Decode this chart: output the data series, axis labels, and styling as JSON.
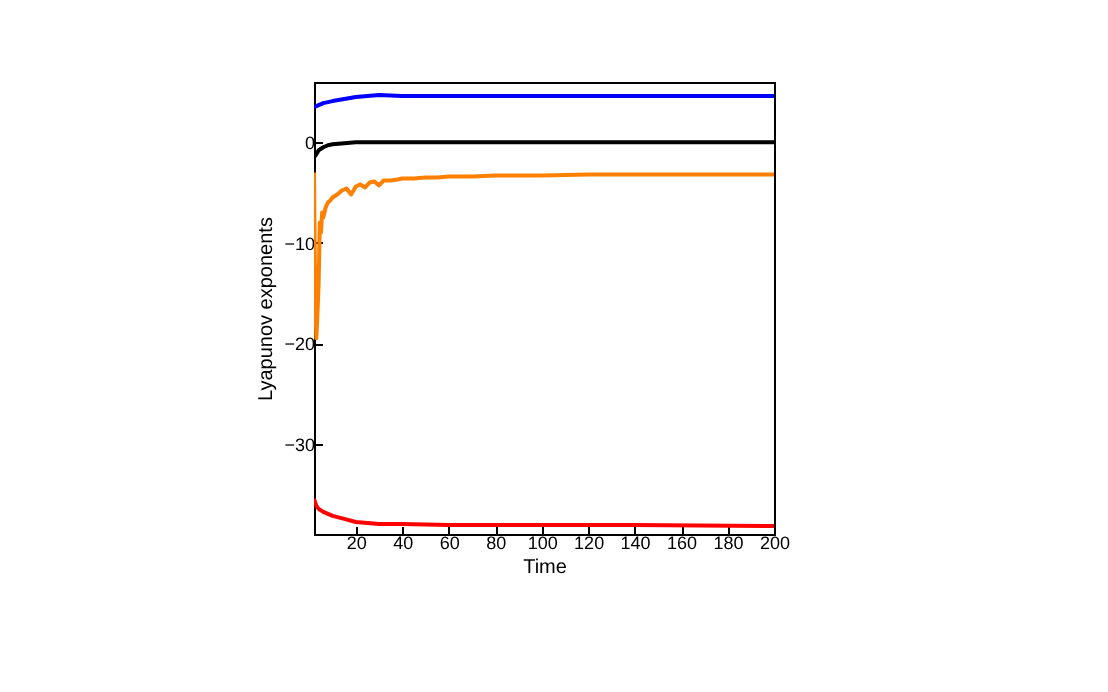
{
  "chart_data": {
    "type": "line",
    "xlabel": "Time",
    "ylabel": "Lyapunov exponents",
    "xlim": [
      2,
      200
    ],
    "ylim": [
      -39,
      6
    ],
    "xticks": [
      20,
      40,
      60,
      80,
      100,
      120,
      140,
      160,
      180,
      200
    ],
    "yticks": [
      -30,
      -20,
      -10,
      0
    ],
    "grid": false,
    "series": [
      {
        "color": "#0000ff",
        "x": [
          2,
          4,
          6,
          10,
          15,
          20,
          25,
          30,
          40,
          60,
          80,
          100,
          140,
          200
        ],
        "values": [
          3.5,
          3.7,
          3.9,
          4.1,
          4.3,
          4.5,
          4.6,
          4.7,
          4.6,
          4.6,
          4.6,
          4.6,
          4.6,
          4.6
        ]
      },
      {
        "color": "#000000",
        "x": [
          2,
          3,
          4,
          6,
          8,
          10,
          15,
          20,
          30,
          40,
          60,
          100,
          200
        ],
        "values": [
          -1.5,
          -1.2,
          -0.8,
          -0.5,
          -0.3,
          -0.2,
          -0.1,
          0,
          0,
          0,
          0,
          0,
          0
        ]
      },
      {
        "color": "#ff8000",
        "x": [
          2,
          2.5,
          3,
          3.5,
          4,
          4.5,
          5,
          5.5,
          6,
          7,
          8,
          9,
          10,
          12,
          14,
          16,
          18,
          20,
          22,
          24,
          26,
          28,
          30,
          32,
          35,
          38,
          40,
          45,
          50,
          55,
          60,
          70,
          80,
          90,
          100,
          120,
          140,
          160,
          180,
          200
        ],
        "values": [
          -3,
          -15,
          -19.5,
          -17,
          -14,
          -8,
          -9,
          -7,
          -7.5,
          -6.5,
          -6,
          -5.8,
          -5.5,
          -5.2,
          -4.8,
          -4.6,
          -5.2,
          -4.4,
          -4.2,
          -4.5,
          -4,
          -3.9,
          -4.3,
          -3.8,
          -3.8,
          -3.7,
          -3.6,
          -3.6,
          -3.5,
          -3.5,
          -3.4,
          -3.4,
          -3.3,
          -3.3,
          -3.3,
          -3.2,
          -3.2,
          -3.2,
          -3.2,
          -3.2
        ]
      },
      {
        "color": "#ff0000",
        "x": [
          2,
          3,
          4,
          6,
          8,
          10,
          15,
          20,
          30,
          40,
          60,
          100,
          140,
          200
        ],
        "values": [
          -35.5,
          -36.2,
          -36.5,
          -36.8,
          -37,
          -37.2,
          -37.5,
          -37.8,
          -38,
          -38,
          -38.1,
          -38.1,
          -38.1,
          -38.2
        ]
      }
    ]
  }
}
